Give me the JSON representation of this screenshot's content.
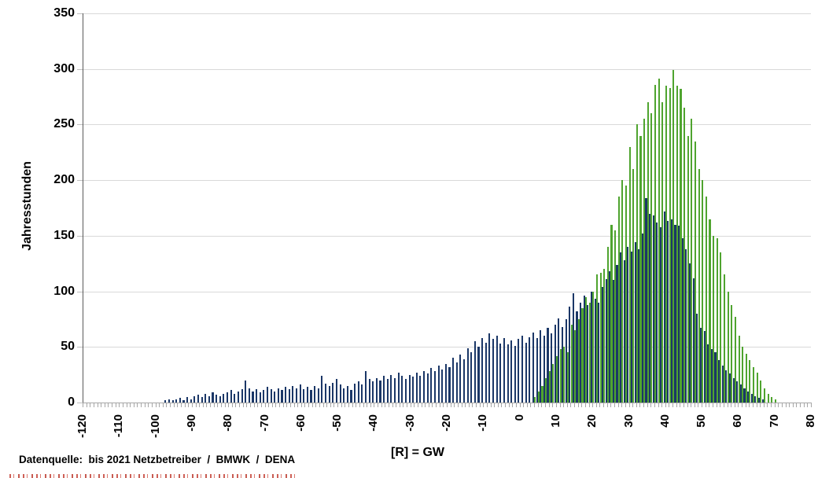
{
  "figure": {
    "y_axis_title": "Jahresstunden",
    "x_axis_title": "[R] = GW",
    "source_note": "Datenquelle:  bis 2021 Netzbetreiber  /  BMWK  /  DENA"
  },
  "chart_data": {
    "type": "bar",
    "subtype": "histogram, two overlaid series, 1-GW bins",
    "title": "",
    "xlabel": "[R] = GW",
    "ylabel": "Jahresstunden",
    "xlim": [
      -120,
      80
    ],
    "ylim": [
      0,
      350
    ],
    "x_tick_step": 10,
    "y_tick_step": 50,
    "x_minor_tick_step": 1,
    "grid": "horizontal gridlines every 50, light gray",
    "legend": "none",
    "colors": {
      "series_dark_blue": "#1b3767",
      "series_green": "#4fa42f",
      "gridline": "#d9d9d9",
      "x_axis": "#a6a6a6",
      "y_axis": "#595959",
      "cutoff_text_red": "#c23a2e"
    },
    "series": [
      {
        "name": "dark-blue-histogram",
        "color": "#1b3767",
        "start_x": -97,
        "step": 1,
        "values": [
          2,
          3,
          2,
          3,
          4,
          2,
          5,
          3,
          6,
          7,
          5,
          8,
          6,
          9,
          7,
          6,
          8,
          9,
          11,
          8,
          10,
          12,
          20,
          13,
          10,
          12,
          9,
          11,
          14,
          12,
          10,
          13,
          11,
          14,
          12,
          15,
          13,
          16,
          12,
          14,
          11,
          15,
          13,
          24,
          17,
          15,
          18,
          21,
          16,
          13,
          15,
          11,
          17,
          19,
          16,
          28,
          21,
          19,
          22,
          20,
          24,
          21,
          25,
          22,
          27,
          24,
          21,
          25,
          23,
          27,
          24,
          28,
          26,
          31,
          28,
          33,
          30,
          35,
          32,
          40,
          36,
          43,
          39,
          49,
          45,
          55,
          50,
          58,
          54,
          62,
          57,
          60,
          53,
          58,
          52,
          56,
          51,
          57,
          60,
          54,
          59,
          63,
          58,
          65,
          60,
          67,
          62,
          70,
          76,
          68,
          75,
          86,
          98,
          82,
          90,
          96,
          88,
          100,
          93,
          90,
          104,
          111,
          118,
          110,
          124,
          135,
          128,
          140,
          136,
          144,
          138,
          152,
          184,
          170,
          168,
          162,
          158,
          172,
          163,
          165,
          160,
          159,
          148,
          138,
          125,
          112,
          80,
          67,
          64,
          52,
          48,
          45,
          38,
          33,
          29,
          26,
          22,
          19,
          16,
          13,
          10,
          8,
          6,
          4,
          3
        ]
      },
      {
        "name": "green-histogram",
        "color": "#4fa42f",
        "start_x": 4,
        "step": 1,
        "values": [
          5,
          10,
          15,
          22,
          28,
          35,
          42,
          48,
          50,
          45,
          70,
          65,
          75,
          85,
          95,
          90,
          100,
          115,
          117,
          120,
          140,
          160,
          155,
          185,
          200,
          195,
          230,
          210,
          250,
          240,
          255,
          270,
          260,
          286,
          291,
          270,
          285,
          283,
          299,
          285,
          282,
          265,
          240,
          255,
          235,
          210,
          200,
          185,
          165,
          150,
          148,
          135,
          115,
          100,
          88,
          77,
          60,
          50,
          44,
          38,
          32,
          27,
          20,
          13,
          8,
          5,
          3
        ]
      }
    ]
  }
}
